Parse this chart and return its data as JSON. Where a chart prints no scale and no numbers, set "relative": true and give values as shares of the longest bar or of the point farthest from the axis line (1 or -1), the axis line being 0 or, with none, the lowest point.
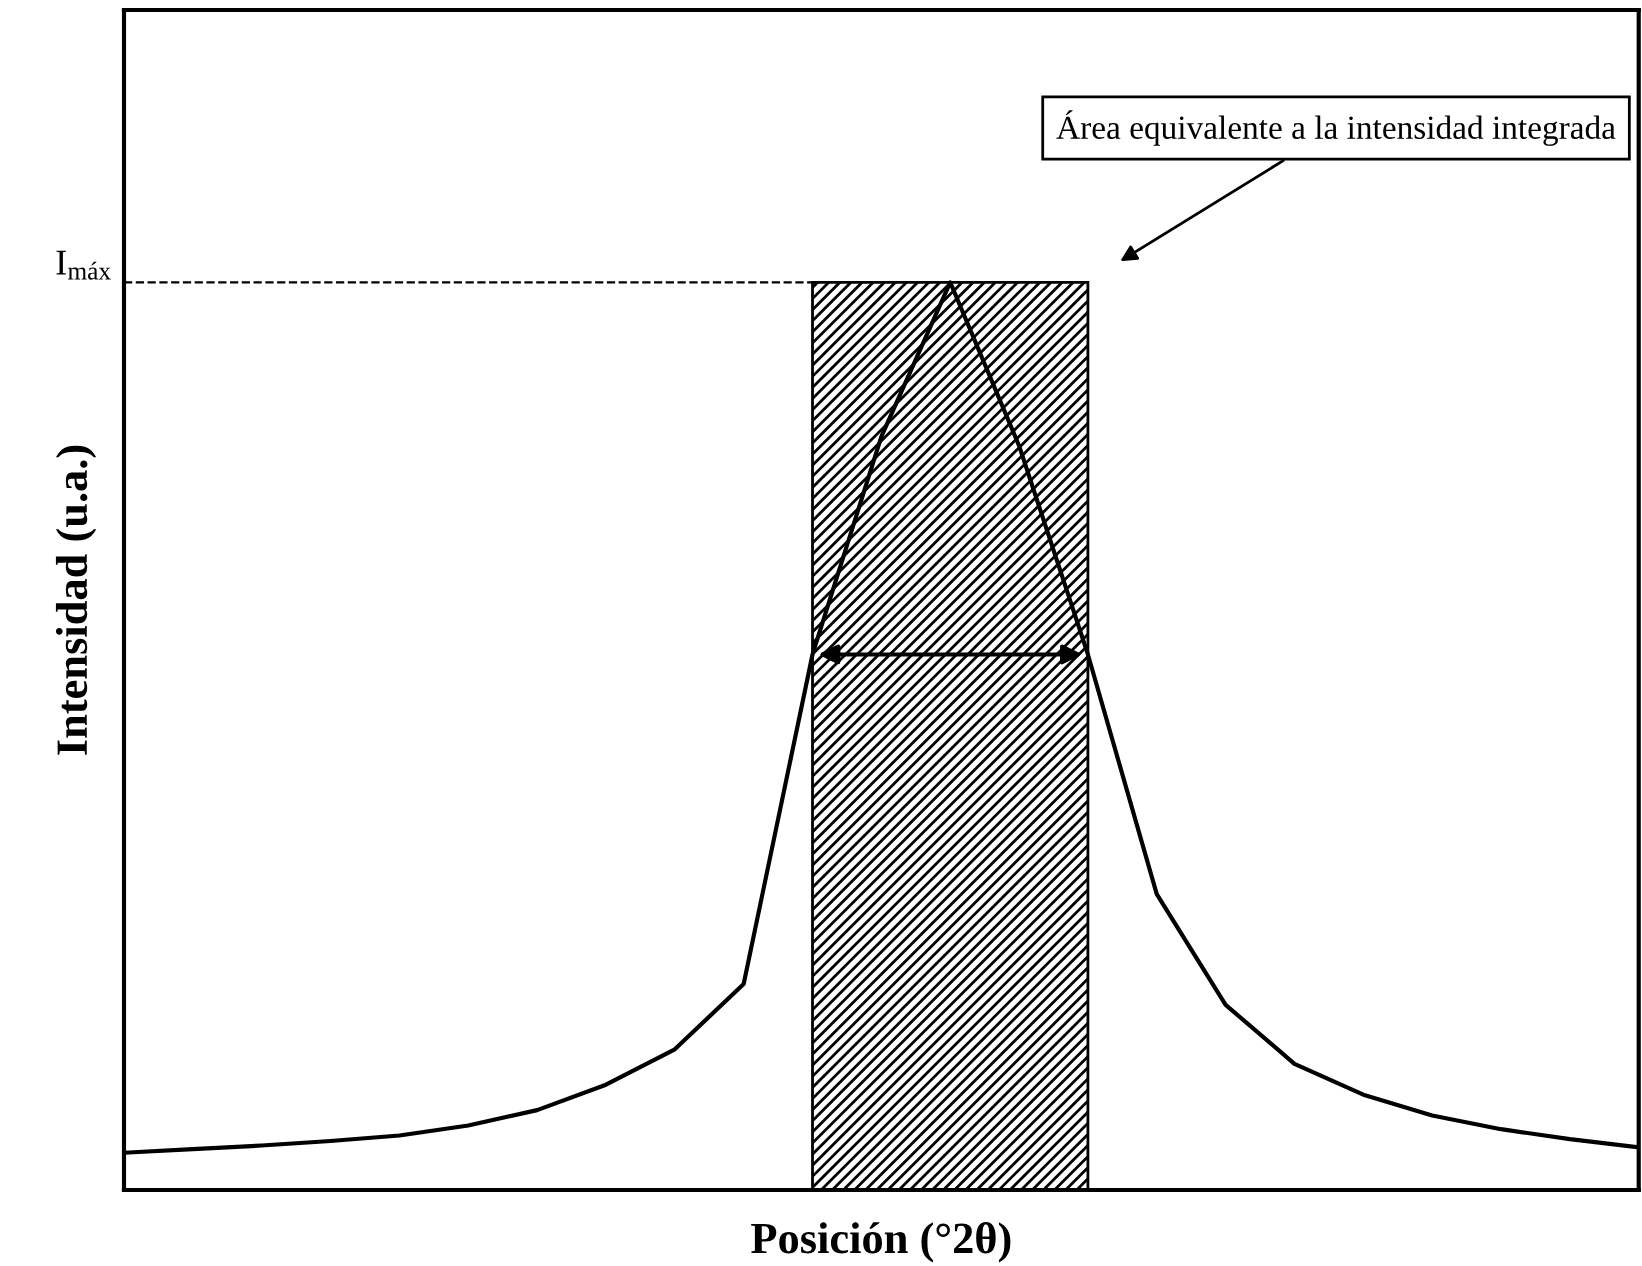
{
  "chart_data": {
    "type": "line",
    "relative": true,
    "xlabel": "Posición (°2θ)",
    "ylabel": "Intensidad (u.a.)",
    "categories": [
      null,
      null,
      null,
      null,
      null,
      null,
      null,
      null,
      null,
      null,
      null,
      null,
      null,
      null,
      null,
      null,
      null,
      null,
      null,
      null,
      null,
      null,
      null
    ],
    "series": [
      {
        "color": "#000000",
        "values": [
          0.041,
          0.045,
          0.049,
          0.054,
          0.06,
          0.071,
          0.088,
          0.116,
          0.155,
          0.227,
          0.59,
          0.83,
          1.0,
          0.82,
          0.59,
          0.326,
          0.204,
          0.139,
          0.105,
          0.082,
          0.067,
          0.056,
          0.047
        ]
      }
    ],
    "ref_lines": [
      {
        "axis": "y",
        "value": 1.0,
        "label": "I$_{máx}$",
        "line_style": "dashed",
        "color": "#000000"
      }
    ],
    "annotations": [
      "Área equivalente a la intensidad integrada"
    ],
    "grid": false,
    "marker": "none",
    "line_style": "solid"
  }
}
